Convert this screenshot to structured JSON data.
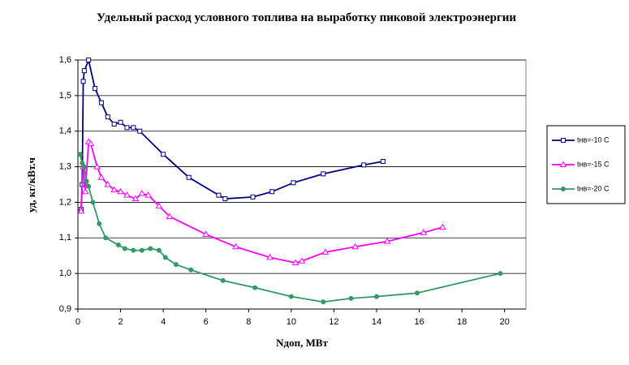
{
  "chart_data": {
    "type": "line",
    "title": "Удельный расход условного топлива на выработку пиковой электроэнергии",
    "x_label": "Nдоп, МВт",
    "y_label": "уд, кг/кВт.ч",
    "xlim": [
      0,
      21
    ],
    "xticks": [
      0,
      2,
      4,
      6,
      8,
      10,
      12,
      14,
      16,
      18,
      20
    ],
    "ylim": [
      0.9,
      1.6
    ],
    "yticks": [
      {
        "value": 0.9,
        "label": "0,9"
      },
      {
        "value": 1.0,
        "label": "1,0"
      },
      {
        "value": 1.1,
        "label": "1,1"
      },
      {
        "value": 1.2,
        "label": "1,2"
      },
      {
        "value": 1.3,
        "label": "1,3"
      },
      {
        "value": 1.4,
        "label": "1,4"
      },
      {
        "value": 1.5,
        "label": "1,5"
      },
      {
        "value": 1.6,
        "label": "1,6"
      }
    ],
    "grid": true,
    "series": [
      {
        "name": "tнв=-10 С",
        "color": "#000080",
        "marker": "square",
        "x": [
          0.15,
          0.2,
          0.25,
          0.3,
          0.5,
          0.8,
          1.1,
          1.4,
          1.7,
          2.0,
          2.3,
          2.6,
          2.9,
          4.0,
          5.2,
          6.6,
          6.9,
          8.2,
          9.1,
          10.1,
          11.5,
          13.4,
          14.3
        ],
        "values": [
          1.18,
          1.25,
          1.54,
          1.57,
          1.6,
          1.52,
          1.48,
          1.44,
          1.42,
          1.425,
          1.41,
          1.41,
          1.4,
          1.335,
          1.27,
          1.22,
          1.21,
          1.215,
          1.23,
          1.255,
          1.28,
          1.305,
          1.315
        ]
      },
      {
        "name": "tнв=-15 С",
        "color": "#ff00ff",
        "marker": "triangle",
        "x": [
          0.15,
          0.25,
          0.35,
          0.5,
          0.6,
          0.9,
          1.1,
          1.4,
          1.7,
          2.0,
          2.3,
          2.7,
          3.0,
          3.3,
          3.8,
          4.3,
          6.0,
          7.4,
          9.0,
          10.2,
          10.5,
          11.6,
          13.0,
          14.5,
          16.2,
          17.1
        ],
        "values": [
          1.175,
          1.3,
          1.23,
          1.37,
          1.365,
          1.3,
          1.27,
          1.25,
          1.235,
          1.23,
          1.22,
          1.21,
          1.225,
          1.22,
          1.19,
          1.16,
          1.11,
          1.075,
          1.045,
          1.03,
          1.035,
          1.06,
          1.075,
          1.09,
          1.115,
          1.13
        ]
      },
      {
        "name": "tнв=-20 С",
        "color": "#339966",
        "marker": "circle",
        "x": [
          0.1,
          0.2,
          0.3,
          0.4,
          0.5,
          0.7,
          1.0,
          1.3,
          1.9,
          2.2,
          2.6,
          3.0,
          3.4,
          3.8,
          4.1,
          4.6,
          5.3,
          6.8,
          8.3,
          10.0,
          11.5,
          12.8,
          14.0,
          15.9,
          19.8
        ],
        "values": [
          1.335,
          1.31,
          1.3,
          1.26,
          1.245,
          1.2,
          1.14,
          1.1,
          1.08,
          1.07,
          1.065,
          1.065,
          1.07,
          1.065,
          1.045,
          1.025,
          1.01,
          0.98,
          0.96,
          0.935,
          0.92,
          0.93,
          0.935,
          0.945,
          1.0
        ]
      }
    ]
  }
}
